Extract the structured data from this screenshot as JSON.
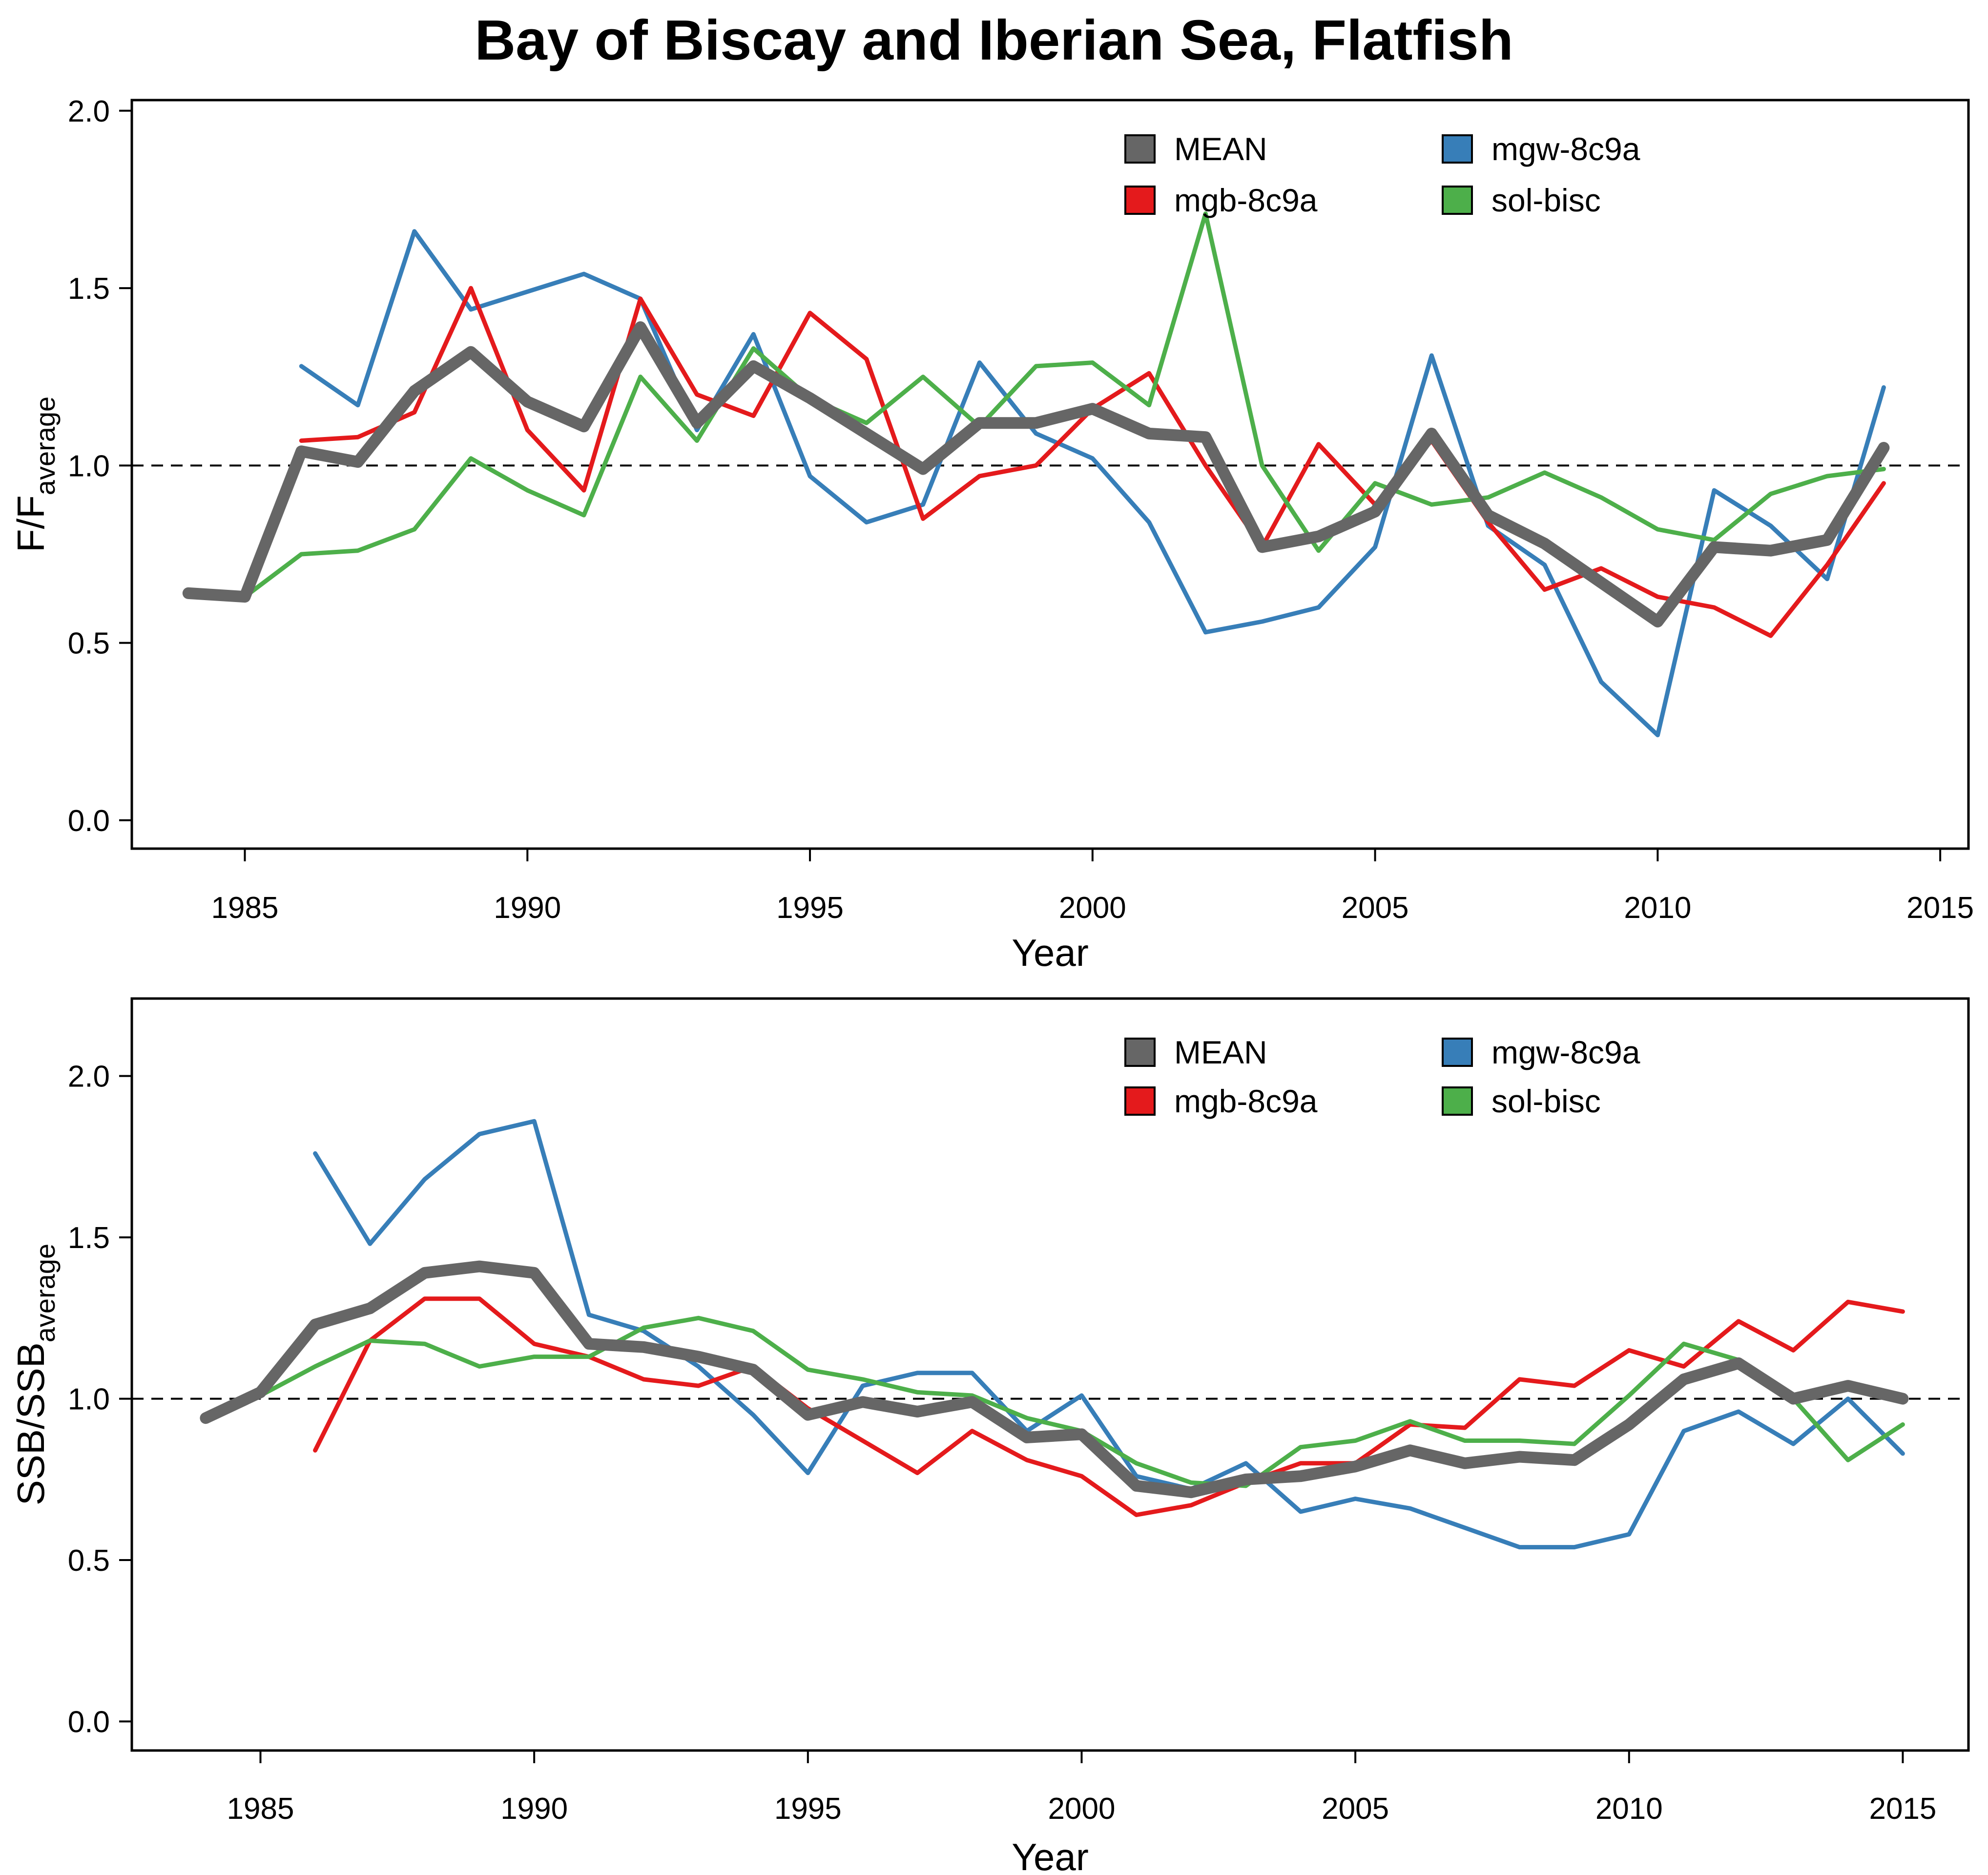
{
  "title": "Bay of Biscay and Iberian Sea, Flatfish",
  "chart_data": [
    {
      "type": "line",
      "panel": "top",
      "xlabel": "Year",
      "ylabel_main": "F/F",
      "ylabel_sub": "average",
      "xlim": [
        1983,
        2015.5
      ],
      "ylim": [
        -0.08,
        2.03
      ],
      "xticks": [
        1985,
        1990,
        1995,
        2000,
        2005,
        2010,
        2015
      ],
      "xtick_labels": [
        "1985",
        "1990",
        "1995",
        "2000",
        "2005",
        "2010",
        "2015"
      ],
      "yticks": [
        0.0,
        0.5,
        1.0,
        1.5,
        2.0
      ],
      "ytick_labels": [
        "0.0",
        "0.5",
        "1.0",
        "1.5",
        "2.0"
      ],
      "reference_line": 1.0,
      "legend_position": "top-right",
      "series": [
        {
          "name": "mgw-8c9a",
          "color": "#377EB8",
          "x": [
            1986,
            1987,
            1988,
            1989,
            1990,
            1991,
            1992,
            1993,
            1994,
            1995,
            1996,
            1997,
            1998,
            1999,
            2000,
            2001,
            2002,
            2003,
            2004,
            2005,
            2006,
            2007,
            2008,
            2009,
            2010,
            2011,
            2012,
            2013,
            2014
          ],
          "y": [
            1.28,
            1.17,
            1.66,
            1.44,
            1.49,
            1.54,
            1.47,
            1.1,
            1.37,
            0.97,
            0.84,
            0.89,
            1.29,
            1.09,
            1.02,
            0.84,
            0.53,
            0.56,
            0.6,
            0.77,
            1.31,
            0.83,
            0.72,
            0.39,
            0.24,
            0.93,
            0.83,
            0.68,
            1.22
          ]
        },
        {
          "name": "mgb-8c9a",
          "color": "#E41A1C",
          "x": [
            1986,
            1987,
            1988,
            1989,
            1990,
            1991,
            1992,
            1993,
            1994,
            1995,
            1996,
            1997,
            1998,
            1999,
            2000,
            2001,
            2002,
            2003,
            2004,
            2005,
            2006,
            2007,
            2008,
            2009,
            2010,
            2011,
            2012,
            2013,
            2014
          ],
          "y": [
            1.07,
            1.08,
            1.15,
            1.5,
            1.1,
            0.93,
            1.47,
            1.2,
            1.14,
            1.43,
            1.3,
            0.85,
            0.97,
            1.0,
            1.16,
            1.26,
            1.0,
            0.77,
            1.06,
            0.89,
            1.07,
            0.84,
            0.65,
            0.71,
            0.63,
            0.6,
            0.52,
            0.72,
            0.95
          ]
        },
        {
          "name": "sol-bisc",
          "color": "#4DAF4A",
          "x": [
            1984,
            1985,
            1986,
            1987,
            1988,
            1989,
            1990,
            1991,
            1992,
            1993,
            1994,
            1995,
            1996,
            1997,
            1998,
            1999,
            2000,
            2001,
            2002,
            2003,
            2004,
            2005,
            2006,
            2007,
            2008,
            2009,
            2010,
            2011,
            2012,
            2013,
            2014
          ],
          "y": [
            0.64,
            0.63,
            0.75,
            0.76,
            0.82,
            1.02,
            0.93,
            0.86,
            1.25,
            1.07,
            1.33,
            1.19,
            1.12,
            1.25,
            1.11,
            1.28,
            1.29,
            1.17,
            1.71,
            1.0,
            0.76,
            0.95,
            0.89,
            0.91,
            0.98,
            0.91,
            0.82,
            0.79,
            0.92,
            0.97,
            0.99
          ]
        },
        {
          "name": "MEAN",
          "color": "#666666",
          "x": [
            1984,
            1985,
            1986,
            1987,
            1988,
            1989,
            1990,
            1991,
            1992,
            1993,
            1994,
            1995,
            1996,
            1997,
            1998,
            1999,
            2000,
            2001,
            2002,
            2003,
            2004,
            2005,
            2006,
            2007,
            2008,
            2009,
            2010,
            2011,
            2012,
            2013,
            2014
          ],
          "y": [
            0.64,
            0.63,
            1.04,
            1.01,
            1.21,
            1.32,
            1.18,
            1.11,
            1.39,
            1.12,
            1.28,
            1.19,
            1.09,
            0.99,
            1.12,
            1.12,
            1.16,
            1.09,
            1.08,
            0.77,
            0.8,
            0.87,
            1.09,
            0.86,
            0.78,
            0.67,
            0.56,
            0.77,
            0.76,
            0.79,
            1.05
          ]
        }
      ],
      "legend_order": [
        "MEAN",
        "mgb-8c9a",
        "mgw-8c9a",
        "sol-bisc"
      ]
    },
    {
      "type": "line",
      "panel": "bottom",
      "xlabel": "Year",
      "ylabel_main": "SSB/SSB",
      "ylabel_sub": "average",
      "xlim": [
        1982.65,
        2016.2
      ],
      "ylim": [
        -0.09,
        2.24
      ],
      "xticks": [
        1985,
        1990,
        1995,
        2000,
        2005,
        2010,
        2015
      ],
      "xtick_labels": [
        "1985",
        "1990",
        "1995",
        "2000",
        "2005",
        "2010",
        "2015"
      ],
      "yticks": [
        0.0,
        0.5,
        1.0,
        1.5,
        2.0
      ],
      "ytick_labels": [
        "0.0",
        "0.5",
        "1.0",
        "1.5",
        "2.0"
      ],
      "reference_line": 1.0,
      "legend_position": "top-right",
      "series": [
        {
          "name": "mgw-8c9a",
          "color": "#377EB8",
          "x": [
            1986,
            1987,
            1988,
            1989,
            1990,
            1991,
            1992,
            1993,
            1994,
            1995,
            1996,
            1997,
            1998,
            1999,
            2000,
            2001,
            2002,
            2003,
            2004,
            2005,
            2006,
            2007,
            2008,
            2009,
            2010,
            2011,
            2012,
            2013,
            2014,
            2015
          ],
          "y": [
            1.76,
            1.48,
            1.68,
            1.82,
            1.86,
            1.26,
            1.21,
            1.1,
            0.95,
            0.77,
            1.04,
            1.08,
            1.08,
            0.9,
            1.01,
            0.76,
            0.72,
            0.8,
            0.65,
            0.69,
            0.66,
            0.6,
            0.54,
            0.54,
            0.58,
            0.9,
            0.96,
            0.86,
            1.0,
            0.83
          ]
        },
        {
          "name": "mgb-8c9a",
          "color": "#E41A1C",
          "x": [
            1986,
            1987,
            1988,
            1989,
            1990,
            1991,
            1992,
            1993,
            1994,
            1995,
            1996,
            1997,
            1998,
            1999,
            2000,
            2001,
            2002,
            2003,
            2004,
            2005,
            2006,
            2007,
            2008,
            2009,
            2010,
            2011,
            2012,
            2013,
            2014,
            2015
          ],
          "y": [
            0.84,
            1.18,
            1.31,
            1.31,
            1.17,
            1.13,
            1.06,
            1.04,
            1.1,
            0.97,
            0.87,
            0.77,
            0.9,
            0.81,
            0.76,
            0.64,
            0.67,
            0.74,
            0.8,
            0.8,
            0.92,
            0.91,
            1.06,
            1.04,
            1.15,
            1.1,
            1.24,
            1.15,
            1.3,
            1.27
          ]
        },
        {
          "name": "sol-bisc",
          "color": "#4DAF4A",
          "x": [
            1984,
            1985,
            1986,
            1987,
            1988,
            1989,
            1990,
            1991,
            1992,
            1993,
            1994,
            1995,
            1996,
            1997,
            1998,
            1999,
            2000,
            2001,
            2002,
            2003,
            2004,
            2005,
            2006,
            2007,
            2008,
            2009,
            2010,
            2011,
            2012,
            2013,
            2014,
            2015
          ],
          "y": [
            0.94,
            1.01,
            1.1,
            1.18,
            1.17,
            1.1,
            1.13,
            1.13,
            1.22,
            1.25,
            1.21,
            1.09,
            1.06,
            1.02,
            1.01,
            0.94,
            0.9,
            0.8,
            0.74,
            0.73,
            0.85,
            0.87,
            0.93,
            0.87,
            0.87,
            0.86,
            1.01,
            1.17,
            1.12,
            1.0,
            0.81,
            0.92
          ]
        },
        {
          "name": "MEAN",
          "color": "#666666",
          "x": [
            1984,
            1985,
            1986,
            1987,
            1988,
            1989,
            1990,
            1991,
            1992,
            1993,
            1994,
            1995,
            1996,
            1997,
            1998,
            1999,
            2000,
            2001,
            2002,
            2003,
            2004,
            2005,
            2006,
            2007,
            2008,
            2009,
            2010,
            2011,
            2012,
            2013,
            2014,
            2015
          ],
          "y": [
            0.94,
            1.02,
            1.23,
            1.28,
            1.39,
            1.41,
            1.39,
            1.17,
            1.16,
            1.13,
            1.09,
            0.95,
            0.99,
            0.96,
            0.99,
            0.88,
            0.89,
            0.73,
            0.71,
            0.75,
            0.76,
            0.79,
            0.84,
            0.8,
            0.82,
            0.81,
            0.92,
            1.06,
            1.11,
            1.0,
            1.04,
            1.0
          ]
        }
      ],
      "legend_order": [
        "MEAN",
        "mgb-8c9a",
        "mgw-8c9a",
        "sol-bisc"
      ]
    }
  ]
}
